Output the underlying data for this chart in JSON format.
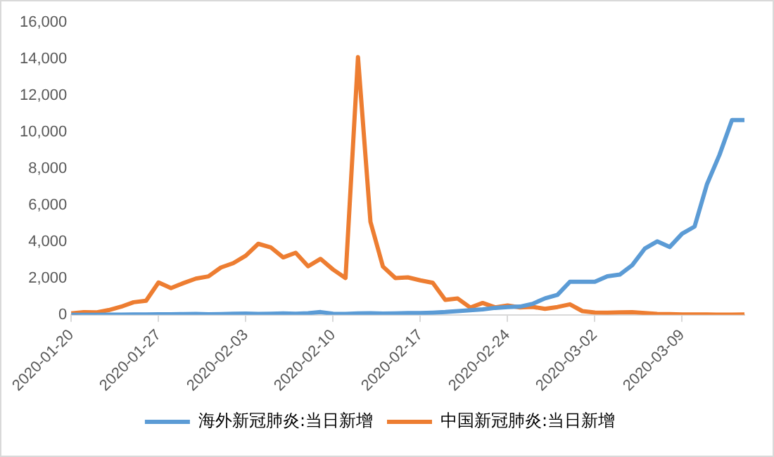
{
  "chart_data": {
    "type": "line",
    "categories": [
      "2020-01-20",
      null,
      null,
      null,
      null,
      null,
      null,
      "2020-01-27",
      null,
      null,
      null,
      null,
      null,
      null,
      "2020-02-03",
      null,
      null,
      null,
      null,
      null,
      null,
      "2020-02-10",
      null,
      null,
      null,
      null,
      null,
      null,
      "2020-02-17",
      null,
      null,
      null,
      null,
      null,
      null,
      "2020-02-24",
      null,
      null,
      null,
      null,
      null,
      null,
      "2020-03-02",
      null,
      null,
      null,
      null,
      null,
      null,
      "2020-03-09",
      null,
      null,
      null,
      null,
      null
    ],
    "series": [
      {
        "name": "海外新冠肺炎:当日新增",
        "color": "#5b9bd5",
        "values": [
          1,
          2,
          5,
          10,
          12,
          15,
          20,
          25,
          30,
          40,
          50,
          30,
          40,
          60,
          70,
          50,
          60,
          80,
          60,
          90,
          150,
          60,
          50,
          80,
          90,
          70,
          80,
          100,
          100,
          120,
          150,
          200,
          250,
          300,
          380,
          420,
          450,
          600,
          900,
          1090,
          1810,
          1810,
          1810,
          2110,
          2200,
          2720,
          3620,
          4020,
          3710,
          4440,
          4830,
          7160,
          8760,
          10660,
          10660
        ]
      },
      {
        "name": "中国新冠肺炎:当日新增",
        "color": "#ed7d31",
        "values": [
          77,
          149,
          131,
          259,
          444,
          688,
          769,
          1771,
          1459,
          1737,
          1981,
          2102,
          2590,
          2829,
          3235,
          3887,
          3694,
          3143,
          3399,
          2656,
          3062,
          2478,
          2015,
          14108,
          5090,
          2641,
          2009,
          2048,
          1886,
          1749,
          820,
          892,
          397,
          648,
          409,
          508,
          406,
          433,
          327,
          427,
          573,
          202,
          125,
          119,
          139,
          143,
          99,
          44,
          40,
          19,
          24,
          15,
          8,
          11,
          20
        ]
      }
    ],
    "ylim": [
      0,
      16000
    ],
    "yticks": [
      {
        "value": 0,
        "label": "0"
      },
      {
        "value": 2000,
        "label": "2,000"
      },
      {
        "value": 4000,
        "label": "4,000"
      },
      {
        "value": 6000,
        "label": "6,000"
      },
      {
        "value": 8000,
        "label": "8,000"
      },
      {
        "value": 10000,
        "label": "10,000"
      },
      {
        "value": 12000,
        "label": "12,000"
      },
      {
        "value": 14000,
        "label": "14,000"
      },
      {
        "value": 16000,
        "label": "16,000"
      }
    ],
    "grid": false,
    "legend": "bottom",
    "marker": "none",
    "line_style": "solid"
  }
}
